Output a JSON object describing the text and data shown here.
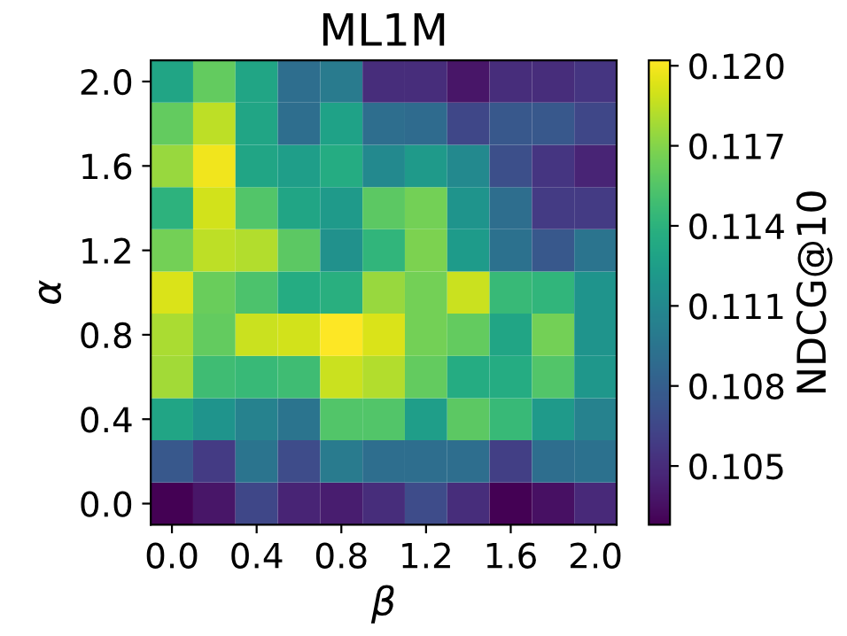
{
  "chart_data": {
    "type": "heatmap",
    "title": "ML1M",
    "xlabel": "β",
    "ylabel": "α",
    "clabel": "NDCG@10",
    "categories": [
      "0.0",
      null,
      "0.4",
      null,
      "0.8",
      null,
      "1.2",
      null,
      "1.6",
      null,
      "2.0"
    ],
    "y_categories": [
      "2.0",
      null,
      "1.6",
      null,
      "1.2",
      null,
      "0.8",
      null,
      "0.4",
      null,
      "0.0"
    ],
    "cells": [
      [
        0.113,
        0.116,
        0.113,
        0.109,
        0.11,
        0.105,
        0.105,
        0.1038,
        0.105,
        0.105,
        0.1055
      ],
      [
        0.116,
        0.1185,
        0.113,
        0.109,
        0.1128,
        0.109,
        0.1088,
        0.1065,
        0.1075,
        0.1075,
        0.1065
      ],
      [
        0.1175,
        0.1198,
        0.113,
        0.1125,
        0.1135,
        0.111,
        0.1122,
        0.111,
        0.107,
        0.1055,
        0.1045
      ],
      [
        0.114,
        0.119,
        0.1155,
        0.113,
        0.1122,
        0.1158,
        0.1165,
        0.1118,
        0.109,
        0.1058,
        0.1058
      ],
      [
        0.1165,
        0.1185,
        0.1182,
        0.1158,
        0.1115,
        0.1142,
        0.1168,
        0.1123,
        0.1093,
        0.1075,
        0.1095
      ],
      [
        0.1192,
        0.1162,
        0.1153,
        0.1135,
        0.1138,
        0.1175,
        0.1165,
        0.1188,
        0.1145,
        0.1142,
        0.1118
      ],
      [
        0.118,
        0.116,
        0.1188,
        0.119,
        0.1202,
        0.1192,
        0.1165,
        0.116,
        0.113,
        0.1165,
        0.1118
      ],
      [
        0.1178,
        0.1148,
        0.1145,
        0.1148,
        0.1188,
        0.1182,
        0.116,
        0.1135,
        0.1135,
        0.1155,
        0.112
      ],
      [
        0.113,
        0.1118,
        0.1105,
        0.1095,
        0.1155,
        0.1155,
        0.1125,
        0.1158,
        0.1145,
        0.1122,
        0.1105
      ],
      [
        0.1075,
        0.1058,
        0.1095,
        0.1068,
        0.11,
        0.109,
        0.109,
        0.109,
        0.106,
        0.109,
        0.1093
      ],
      [
        0.1028,
        0.1038,
        0.1065,
        0.1045,
        0.1042,
        0.105,
        0.1068,
        0.105,
        0.1028,
        0.1035,
        0.1048
      ]
    ],
    "clim": [
      0.1028,
      0.1202
    ],
    "cticks": [
      0.105,
      0.108,
      0.111,
      0.114,
      0.117,
      {
        "value": 0.12,
        "label": "0.120"
      }
    ]
  }
}
